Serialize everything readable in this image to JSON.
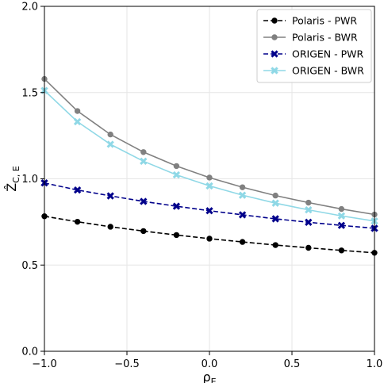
{
  "chart_data": {
    "type": "line",
    "xlabel": "ρ_E",
    "ylabel": "Ẑ_C, E",
    "xlim": [
      -1.0,
      1.0
    ],
    "ylim": [
      0.0,
      2.0
    ],
    "xticks": [
      "−1.0",
      "−0.5",
      "0.0",
      "0.5",
      "1.0"
    ],
    "yticks": [
      "0.0",
      "0.5",
      "1.0",
      "1.5",
      "2.0"
    ],
    "grid": true,
    "legend_position": "top-right",
    "x": [
      -1.0,
      -0.8,
      -0.6,
      -0.4,
      -0.2,
      0.0,
      0.2,
      0.4,
      0.6,
      0.8,
      1.0
    ],
    "series": [
      {
        "name": "Polaris - PWR",
        "color": "#000000",
        "line": "dashed",
        "marker": "circle",
        "values": [
          0.783,
          0.751,
          0.722,
          0.697,
          0.674,
          0.653,
          0.634,
          0.616,
          0.6,
          0.585,
          0.571
        ]
      },
      {
        "name": "Polaris - BWR",
        "color": "#808080",
        "line": "solid",
        "marker": "circle",
        "values": [
          1.579,
          1.393,
          1.257,
          1.155,
          1.074,
          1.007,
          0.951,
          0.903,
          0.862,
          0.825,
          0.793
        ]
      },
      {
        "name": "ORIGEN - PWR",
        "color": "#00008b",
        "line": "dashed",
        "marker": "x",
        "values": [
          0.976,
          0.935,
          0.901,
          0.869,
          0.841,
          0.815,
          0.791,
          0.768,
          0.748,
          0.73,
          0.713
        ]
      },
      {
        "name": "ORIGEN - BWR",
        "color": "#8fd8e6",
        "line": "solid",
        "marker": "x",
        "values": [
          1.512,
          1.331,
          1.2,
          1.102,
          1.023,
          0.959,
          0.905,
          0.859,
          0.82,
          0.785,
          0.755
        ]
      }
    ]
  }
}
